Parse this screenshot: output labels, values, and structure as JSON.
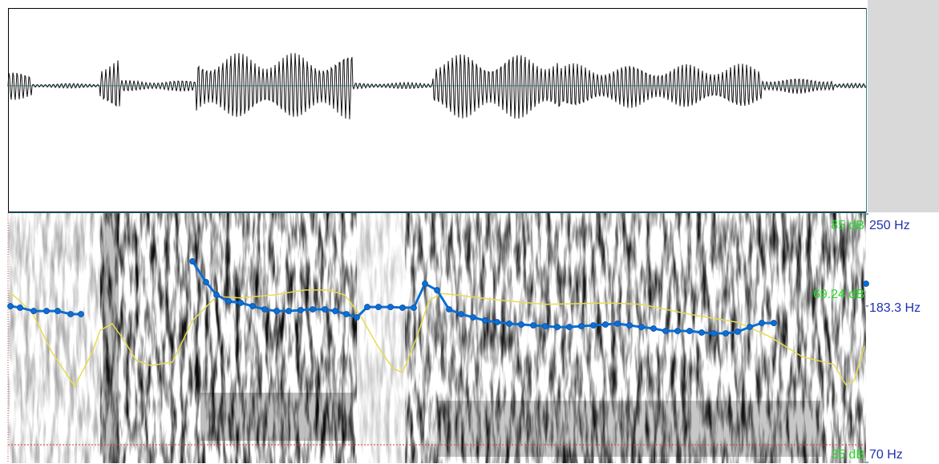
{
  "chart_data": {
    "type": "line",
    "xlim": [
      0,
      1.07
    ],
    "ylim": [
      70,
      250
    ],
    "yticks": [
      {
        "value": 70,
        "label": "70 Hz"
      },
      {
        "value": 183.3,
        "label": "183.3 Hz"
      },
      {
        "value": 250,
        "label": "250 Hz"
      }
    ],
    "y2lim": [
      35,
      85
    ],
    "y2ticks": [
      {
        "value": 35,
        "label": "35 dB"
      },
      {
        "value": 69.24,
        "label": "69.24 dB"
      },
      {
        "value": 85,
        "label": "85 dB"
      }
    ],
    "series": [
      {
        "color": "#0b6fd6",
        "x": [
          0.003,
          0.015,
          0.032,
          0.048,
          0.062,
          0.078,
          0.091,
          0.16,
          0.23,
          0.247,
          0.26,
          0.275,
          0.29,
          0.305,
          0.32,
          0.335,
          0.35,
          0.365,
          0.38,
          0.395,
          0.408,
          0.422,
          0.435,
          0.448,
          0.462,
          0.477,
          0.492,
          0.506,
          0.52,
          0.535,
          0.55,
          0.565,
          0.58,
          0.595,
          0.61,
          0.625,
          0.64,
          0.655,
          0.67,
          0.685,
          0.7,
          0.715,
          0.73,
          0.745,
          0.76,
          0.775,
          0.79,
          0.805,
          0.82,
          0.835,
          0.85,
          0.865,
          0.88,
          0.895,
          0.91,
          0.925,
          0.94,
          0.955,
          1.0,
          1.07
        ],
        "values": [
          183.2,
          182.1,
          179.7,
          179.7,
          179.7,
          177.4,
          177.4,
          null,
          215.7,
          200.6,
          191.4,
          186.7,
          185.6,
          183.2,
          180.9,
          179.7,
          179.7,
          180.3,
          180.9,
          180.9,
          179.7,
          177.4,
          175.1,
          182.6,
          182.6,
          182.6,
          182.1,
          182.1,
          199.5,
          194.8,
          180.9,
          177.4,
          175.1,
          172.8,
          171.6,
          170.5,
          169.9,
          169.3,
          168.7,
          168.1,
          168.1,
          168.7,
          169.3,
          169.9,
          170.5,
          169.3,
          168.1,
          167.0,
          165.2,
          165.2,
          165.2,
          164.1,
          163.5,
          163.5,
          164.7,
          168.1,
          171.0,
          171.0,
          null,
          199.5
        ]
      },
      {
        "color": "#e8dc50",
        "axis": "y2",
        "x": [
          0.003,
          0.03,
          0.055,
          0.083,
          0.105,
          0.115,
          0.13,
          0.145,
          0.16,
          0.178,
          0.205,
          0.23,
          0.26,
          0.29,
          0.33,
          0.37,
          0.4,
          0.42,
          0.44,
          0.46,
          0.48,
          0.492,
          0.51,
          0.525,
          0.54,
          0.56,
          0.61,
          0.67,
          0.75,
          0.79,
          0.85,
          0.91,
          0.95,
          0.99,
          1.03,
          1.045,
          1.055,
          1.068
        ],
        "values": [
          69.2,
          65.2,
          57.1,
          50.3,
          57.1,
          61.6,
          62.9,
          59.5,
          55.5,
          54.5,
          55.2,
          63.5,
          68.4,
          68.1,
          68.7,
          69.7,
          69.7,
          68.7,
          64.4,
          58.7,
          53.9,
          53.1,
          60.3,
          67.6,
          69.0,
          68.7,
          67.7,
          66.8,
          67.1,
          66.8,
          64.8,
          63.2,
          60.3,
          56.3,
          54.7,
          50.6,
          51.4,
          58.4
        ]
      }
    ]
  }
}
